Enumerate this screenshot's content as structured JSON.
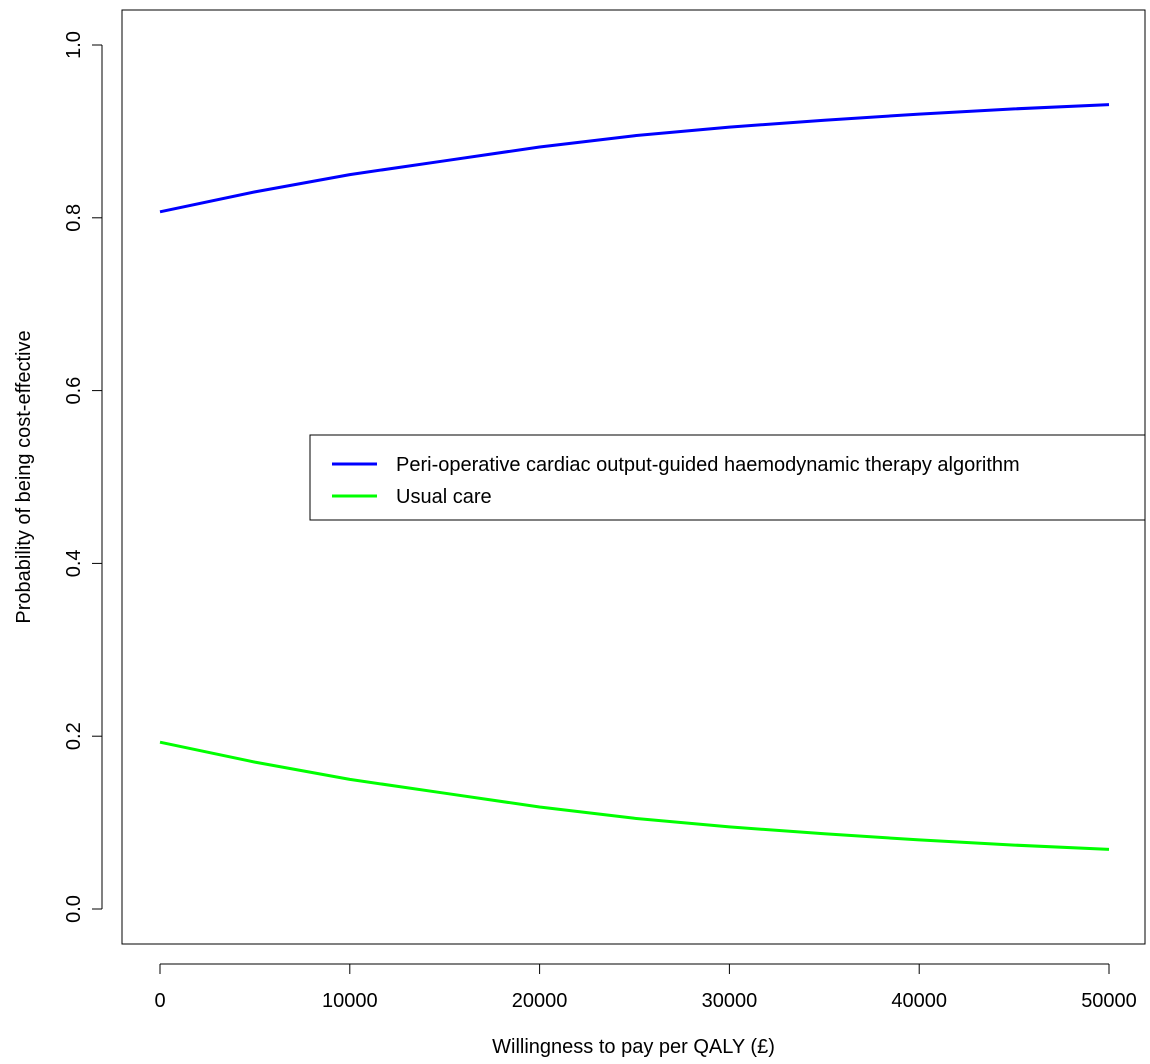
{
  "chart_data": {
    "type": "line",
    "title": "",
    "xlabel": "Willingness to pay per QALY (£)",
    "ylabel": "Probability of being cost-effective",
    "xlim": [
      0,
      50000
    ],
    "ylim": [
      0.0,
      1.0
    ],
    "xticks": [
      0,
      10000,
      20000,
      30000,
      40000,
      50000
    ],
    "yticks": [
      0.0,
      0.2,
      0.4,
      0.6,
      0.8,
      1.0
    ],
    "xtick_labels": [
      "0",
      "10000",
      "20000",
      "30000",
      "40000",
      "50000"
    ],
    "ytick_labels": [
      "0.0",
      "0.2",
      "0.4",
      "0.6",
      "0.8",
      "1.0"
    ],
    "grid": false,
    "legend_position": "center-right",
    "x": [
      0,
      5000,
      10000,
      15000,
      20000,
      25000,
      30000,
      35000,
      40000,
      45000,
      50000
    ],
    "series": [
      {
        "name": "Peri-operative cardiac output-guided haemodynamic therapy algorithm",
        "color": "#0000ff",
        "values": [
          0.807,
          0.83,
          0.85,
          0.866,
          0.882,
          0.895,
          0.905,
          0.913,
          0.92,
          0.926,
          0.931
        ]
      },
      {
        "name": "Usual care",
        "color": "#00ff00",
        "values": [
          0.193,
          0.17,
          0.15,
          0.134,
          0.118,
          0.105,
          0.095,
          0.087,
          0.08,
          0.074,
          0.069
        ]
      }
    ]
  }
}
